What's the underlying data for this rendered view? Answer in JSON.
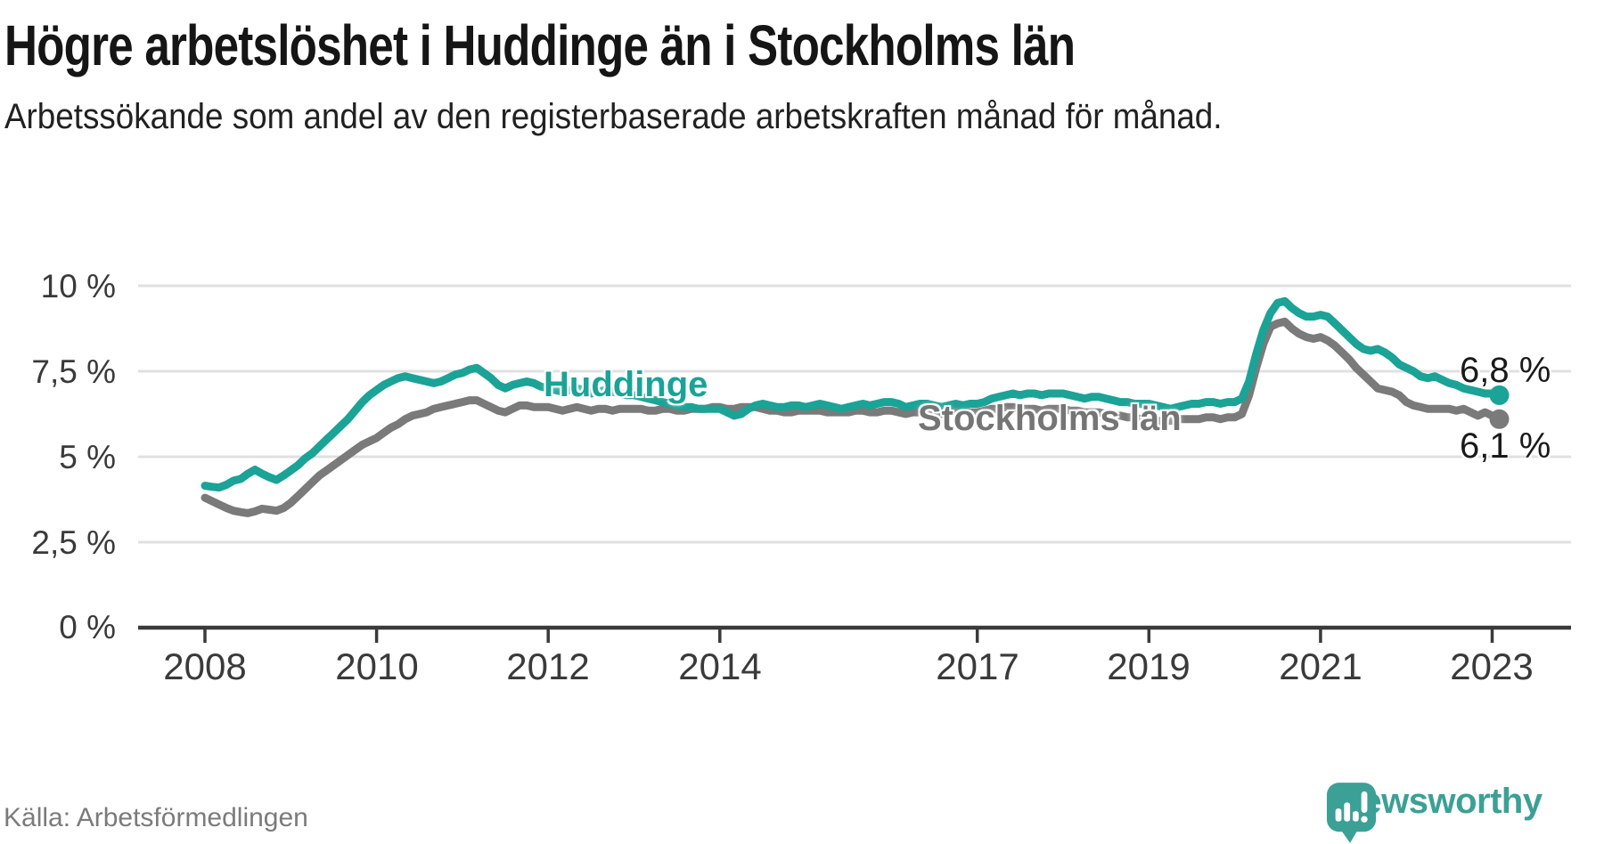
{
  "title": "Högre arbetslöshet i Huddinge än i Stockholms län",
  "subtitle": "Arbetssökande som andel av den registerbaserade arbetskraften månad för månad.",
  "source": "Källa: Arbetsförmedlingen",
  "branding": {
    "name": "Newsworthy",
    "icon": "newsworthy-speech-bubble-bar-chart-icon",
    "color": "#3ba096"
  },
  "colors": {
    "huddinge": "#1aa396",
    "stockholm": "#7a7a7a",
    "grid": "#e0e0e0",
    "axis": "#3a3a3a",
    "tick_text": "#3a3a3a",
    "value_text": "#1a1a1a"
  },
  "chart_data": {
    "type": "line",
    "title": "Högre arbetslöshet i Huddinge än i Stockholms län",
    "xlabel": "",
    "ylabel": "Arbetssökande som andel av den registerbaserade arbetskraften",
    "unit": "%",
    "grid": "horizontal",
    "legend_position": "inline-labels",
    "x_start": "2008-01",
    "x_end": "2023-02",
    "x_frequency": "monthly",
    "ylim": [
      0,
      10.8
    ],
    "y_ticks": [
      {
        "label": "10 %",
        "value": 10
      },
      {
        "label": "7,5 %",
        "value": 7.5
      },
      {
        "label": "5 %",
        "value": 5
      },
      {
        "label": "2,5 %",
        "value": 2.5
      },
      {
        "label": "0 %",
        "value": 0
      }
    ],
    "x_ticks": [
      {
        "label": "2008",
        "years_from_start": 0
      },
      {
        "label": "2010",
        "years_from_start": 2
      },
      {
        "label": "2012",
        "years_from_start": 4
      },
      {
        "label": "2014",
        "years_from_start": 6
      },
      {
        "label": "2017",
        "years_from_start": 9
      },
      {
        "label": "2019",
        "years_from_start": 11
      },
      {
        "label": "2021",
        "years_from_start": 13
      },
      {
        "label": "2023",
        "years_from_start": 15
      }
    ],
    "series": [
      {
        "name": "Huddinge",
        "color": "#1aa396",
        "end_label": "6,8 %",
        "end_value": 6.8,
        "values": [
          4.15,
          4.12,
          4.1,
          4.18,
          4.3,
          4.35,
          4.5,
          4.62,
          4.5,
          4.4,
          4.32,
          4.45,
          4.6,
          4.75,
          4.95,
          5.1,
          5.3,
          5.5,
          5.7,
          5.9,
          6.1,
          6.35,
          6.6,
          6.8,
          6.95,
          7.1,
          7.2,
          7.3,
          7.35,
          7.3,
          7.25,
          7.2,
          7.15,
          7.2,
          7.3,
          7.4,
          7.45,
          7.55,
          7.6,
          7.45,
          7.3,
          7.1,
          7.0,
          7.1,
          7.15,
          7.2,
          7.15,
          7.05,
          7.0,
          6.95,
          6.9,
          6.95,
          7.0,
          6.95,
          6.85,
          6.9,
          6.95,
          6.9,
          6.85,
          6.8,
          6.8,
          6.75,
          6.7,
          6.65,
          6.6,
          6.55,
          6.5,
          6.45,
          6.45,
          6.4,
          6.4,
          6.4,
          6.4,
          6.3,
          6.2,
          6.25,
          6.4,
          6.5,
          6.55,
          6.5,
          6.45,
          6.45,
          6.5,
          6.5,
          6.45,
          6.5,
          6.55,
          6.5,
          6.45,
          6.4,
          6.45,
          6.5,
          6.55,
          6.5,
          6.55,
          6.6,
          6.6,
          6.55,
          6.45,
          6.5,
          6.55,
          6.55,
          6.5,
          6.45,
          6.5,
          6.55,
          6.5,
          6.55,
          6.55,
          6.6,
          6.7,
          6.75,
          6.8,
          6.85,
          6.8,
          6.85,
          6.85,
          6.8,
          6.85,
          6.85,
          6.85,
          6.8,
          6.75,
          6.7,
          6.75,
          6.75,
          6.7,
          6.65,
          6.6,
          6.6,
          6.55,
          6.55,
          6.55,
          6.5,
          6.45,
          6.4,
          6.45,
          6.5,
          6.55,
          6.55,
          6.6,
          6.6,
          6.55,
          6.6,
          6.6,
          6.7,
          7.2,
          8.0,
          8.7,
          9.2,
          9.5,
          9.55,
          9.35,
          9.2,
          9.1,
          9.1,
          9.15,
          9.1,
          8.9,
          8.7,
          8.5,
          8.3,
          8.15,
          8.1,
          8.15,
          8.05,
          7.9,
          7.7,
          7.6,
          7.5,
          7.35,
          7.3,
          7.35,
          7.25,
          7.15,
          7.1,
          7.0,
          6.95,
          6.9,
          6.85,
          6.85,
          6.8
        ]
      },
      {
        "name": "Stockholms län",
        "color": "#7a7a7a",
        "end_label": "6,1 %",
        "end_value": 6.1,
        "values": [
          3.8,
          3.7,
          3.6,
          3.5,
          3.42,
          3.38,
          3.35,
          3.4,
          3.48,
          3.45,
          3.42,
          3.5,
          3.65,
          3.85,
          4.05,
          4.25,
          4.45,
          4.6,
          4.75,
          4.9,
          5.05,
          5.2,
          5.35,
          5.45,
          5.55,
          5.7,
          5.85,
          5.95,
          6.1,
          6.2,
          6.25,
          6.3,
          6.4,
          6.45,
          6.5,
          6.55,
          6.6,
          6.65,
          6.65,
          6.55,
          6.45,
          6.35,
          6.3,
          6.4,
          6.5,
          6.5,
          6.45,
          6.45,
          6.45,
          6.4,
          6.35,
          6.4,
          6.45,
          6.4,
          6.35,
          6.4,
          6.4,
          6.35,
          6.4,
          6.4,
          6.4,
          6.4,
          6.35,
          6.35,
          6.4,
          6.4,
          6.35,
          6.35,
          6.4,
          6.4,
          6.4,
          6.45,
          6.45,
          6.4,
          6.4,
          6.45,
          6.45,
          6.45,
          6.4,
          6.35,
          6.35,
          6.3,
          6.3,
          6.35,
          6.35,
          6.35,
          6.35,
          6.3,
          6.3,
          6.3,
          6.3,
          6.35,
          6.35,
          6.3,
          6.3,
          6.35,
          6.35,
          6.3,
          6.25,
          6.3,
          6.3,
          6.3,
          6.25,
          6.25,
          6.3,
          6.3,
          6.3,
          6.3,
          6.3,
          6.35,
          6.4,
          6.4,
          6.45,
          6.45,
          6.4,
          6.4,
          6.4,
          6.35,
          6.4,
          6.4,
          6.4,
          6.35,
          6.35,
          6.3,
          6.3,
          6.3,
          6.25,
          6.2,
          6.2,
          6.15,
          6.15,
          6.1,
          6.1,
          6.05,
          6.05,
          6.05,
          6.1,
          6.1,
          6.1,
          6.1,
          6.15,
          6.15,
          6.1,
          6.15,
          6.15,
          6.25,
          6.8,
          7.6,
          8.3,
          8.8,
          8.9,
          8.95,
          8.75,
          8.6,
          8.5,
          8.45,
          8.5,
          8.4,
          8.25,
          8.05,
          7.85,
          7.6,
          7.4,
          7.2,
          7.0,
          6.95,
          6.9,
          6.8,
          6.6,
          6.5,
          6.45,
          6.4,
          6.4,
          6.4,
          6.4,
          6.35,
          6.4,
          6.3,
          6.2,
          6.3,
          6.2,
          6.1
        ]
      }
    ]
  }
}
